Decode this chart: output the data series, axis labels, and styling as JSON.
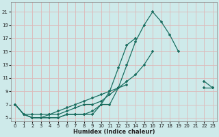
{
  "xlabel": "Humidex (Indice chaleur)",
  "bg_color": "#ceeaea",
  "grid_color": "#ddb8b8",
  "line_color": "#1a6e60",
  "x_values": [
    0,
    1,
    2,
    3,
    4,
    5,
    6,
    7,
    8,
    9,
    10,
    11,
    12,
    13,
    14,
    15,
    16,
    17,
    18,
    19,
    20,
    21,
    22,
    23
  ],
  "line1": [
    7.0,
    5.5,
    5.0,
    5.0,
    5.0,
    5.0,
    5.5,
    5.5,
    5.5,
    5.5,
    7.0,
    7.0,
    9.5,
    13.0,
    16.5,
    19.0,
    21.0,
    19.5,
    17.5,
    15.0,
    null,
    null,
    null,
    null
  ],
  "line2": [
    7.0,
    5.5,
    5.0,
    5.0,
    5.0,
    5.0,
    5.5,
    5.5,
    5.5,
    6.0,
    7.0,
    9.0,
    12.5,
    16.0,
    17.0,
    null,
    null,
    null,
    null,
    null,
    null,
    null,
    null,
    null
  ],
  "line3": [
    7.0,
    5.5,
    5.0,
    5.0,
    5.5,
    5.5,
    6.0,
    6.5,
    7.0,
    7.0,
    7.5,
    8.5,
    9.5,
    10.5,
    11.5,
    13.0,
    15.0,
    null,
    null,
    null,
    null,
    null,
    10.5,
    9.5
  ],
  "line4": [
    7.0,
    5.5,
    5.5,
    5.5,
    5.5,
    6.0,
    6.5,
    7.0,
    7.5,
    8.0,
    8.5,
    9.0,
    9.5,
    10.0,
    null,
    null,
    null,
    null,
    null,
    null,
    null,
    null,
    9.5,
    9.5
  ],
  "ylim": [
    4.5,
    22.5
  ],
  "xlim": [
    -0.5,
    23.5
  ],
  "yticks": [
    5,
    7,
    9,
    11,
    13,
    15,
    17,
    19,
    21
  ],
  "xticks": [
    0,
    1,
    2,
    3,
    4,
    5,
    6,
    7,
    8,
    9,
    10,
    11,
    12,
    13,
    14,
    15,
    16,
    17,
    18,
    19,
    20,
    21,
    22,
    23
  ]
}
